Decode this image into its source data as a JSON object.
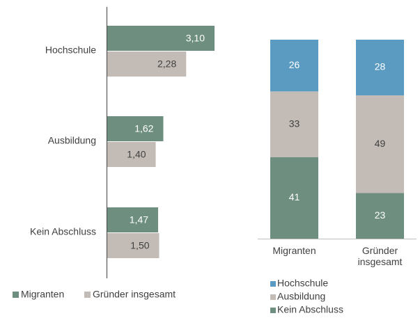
{
  "chart_data": [
    {
      "type": "bar",
      "orientation": "horizontal",
      "categories": [
        "Hochschule",
        "Ausbildung",
        "Kein Abschluss"
      ],
      "series": [
        {
          "name": "Migranten",
          "color": "#6e8f80",
          "values": [
            3.1,
            1.62,
            1.47
          ],
          "value_labels": [
            "3,10",
            "1,62",
            "1,47"
          ]
        },
        {
          "name": "Gründer insgesamt",
          "color": "#c3bcb6",
          "values": [
            2.28,
            1.4,
            1.5
          ],
          "value_labels": [
            "2,28",
            "1,40",
            "1,50"
          ]
        }
      ],
      "legend": "bottom"
    },
    {
      "type": "bar",
      "stacked": true,
      "categories": [
        "Migranten",
        "Gründer insgesamt"
      ],
      "series": [
        {
          "name": "Hochschule",
          "color": "#5b9bc2",
          "values": [
            26,
            28
          ]
        },
        {
          "name": "Ausbildung",
          "color": "#c3bcb6",
          "values": [
            33,
            49
          ]
        },
        {
          "name": "Kein Abschluss",
          "color": "#6e8f80",
          "values": [
            41,
            23
          ]
        }
      ],
      "legend": "bottom"
    }
  ]
}
